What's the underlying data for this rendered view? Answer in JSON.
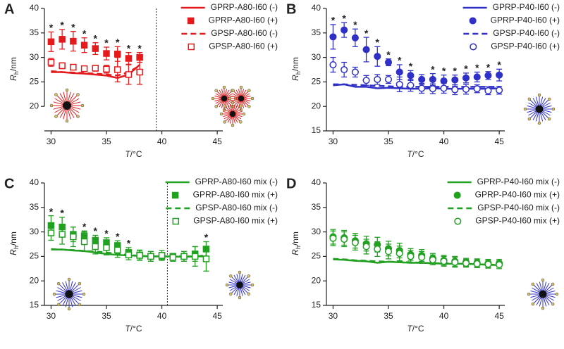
{
  "chart_data": [
    {
      "type": "line",
      "label": "A",
      "color": "#e41a1c",
      "xlabel": {
        "symbol": "T",
        "unit": "/°C"
      },
      "ylabel": {
        "symbol": "R",
        "subscript": "h",
        "unit": "/nm"
      },
      "xlim": [
        29.4,
        45.5
      ],
      "xticks": [
        30,
        35,
        40,
        45
      ],
      "ylim": [
        15,
        40
      ],
      "yticks": [
        20,
        25,
        30,
        35,
        40
      ],
      "vline": 39.5,
      "legend": "upper right",
      "x": [
        30,
        31,
        32,
        33,
        34,
        35,
        36,
        37,
        38
      ],
      "series": [
        {
          "name": "GPRP-A80-I60 (-)",
          "color": "#e41a1c",
          "style": "solid",
          "values": [
            27,
            27,
            26.8,
            26.7,
            26.5,
            26.3,
            25.8,
            26.5,
            28.5
          ]
        },
        {
          "name": "GPRP-A80-I60 (+)",
          "color": "#e41a1c",
          "marker": "square",
          "filled": true,
          "values": [
            33.2,
            33.7,
            33.3,
            32.5,
            31.8,
            30.8,
            30.7,
            29.8,
            30
          ],
          "errors": [
            2,
            2,
            2,
            1.5,
            1.2,
            1.3,
            1.5,
            1.2,
            1
          ]
        },
        {
          "name": "GPSP-A80-I60 (-)",
          "color": "#e41a1c",
          "style": "dashed",
          "values": [
            27.2,
            27,
            26.9,
            26.8,
            26.7,
            26.5,
            26.3,
            27,
            28.3
          ]
        },
        {
          "name": "GPSP-A80-I60 (+)",
          "color": "#e41a1c",
          "marker": "square",
          "filled": false,
          "values": [
            29,
            28.3,
            28,
            27.7,
            27.8,
            27.6,
            27.5,
            26.5,
            27
          ],
          "errors": [
            0.8,
            0.6,
            0.5,
            0.5,
            0.6,
            0.8,
            2.5,
            2,
            2.5
          ]
        }
      ],
      "annotations": [
        {
          "x": 30,
          "text": "*"
        },
        {
          "x": 31,
          "text": "*"
        },
        {
          "x": 32,
          "text": "*"
        },
        {
          "x": 33,
          "text": "*"
        },
        {
          "x": 34,
          "text": "*"
        },
        {
          "x": 35,
          "text": "*"
        },
        {
          "x": 36,
          "text": "*"
        },
        {
          "x": 37,
          "text": "*"
        },
        {
          "x": 38,
          "text": "*"
        }
      ]
    },
    {
      "type": "line",
      "label": "B",
      "color": "#3030c8",
      "xlabel": {
        "symbol": "T",
        "unit": "/°C"
      },
      "ylabel": {
        "symbol": "R",
        "subscript": "h",
        "unit": "/nm"
      },
      "xlim": [
        29.4,
        45.5
      ],
      "xticks": [
        30,
        35,
        40,
        45
      ],
      "ylim": [
        15,
        40
      ],
      "yticks": [
        15,
        20,
        25,
        30,
        35,
        40
      ],
      "legend": "upper right",
      "x": [
        30,
        31,
        32,
        33,
        34,
        35,
        36,
        37,
        38,
        39,
        40,
        41,
        42,
        43,
        44,
        45
      ],
      "series": [
        {
          "name": "GPRP-P40-I60 (-)",
          "color": "#3030c8",
          "style": "solid",
          "values": [
            24.3,
            24.5,
            24,
            24,
            23.7,
            23.8,
            23.7,
            23.6,
            23.6,
            23.7,
            23.6,
            23.6,
            23.6,
            23.6,
            23.6,
            23.7
          ]
        },
        {
          "name": "GPRP-P40-I60 (+)",
          "color": "#3030c8",
          "marker": "circle",
          "filled": true,
          "values": [
            34.2,
            35.6,
            34,
            31.6,
            30.2,
            29,
            27,
            26.3,
            25.5,
            25.5,
            25.2,
            25.4,
            25.8,
            26,
            26.3,
            26.4
          ],
          "errors": [
            2.5,
            1.5,
            1.8,
            2.5,
            2,
            0.7,
            1.5,
            1,
            1,
            1.2,
            1.2,
            1,
            1,
            1,
            0.8,
            1.2
          ]
        },
        {
          "name": "GPSP-P40-I60 (-)",
          "color": "#3030c8",
          "style": "dashed",
          "values": [
            24.5,
            24.5,
            24.4,
            24.3,
            24.2,
            24.1,
            24,
            24,
            24,
            24,
            24,
            24,
            24,
            24,
            24,
            24
          ]
        },
        {
          "name": "GPSP-P40-I60 (+)",
          "color": "#3030c8",
          "marker": "circle",
          "filled": false,
          "values": [
            28.5,
            27.5,
            27,
            25.3,
            25.5,
            25.5,
            24.5,
            24.3,
            23.7,
            23.6,
            23.7,
            23.4,
            23.5,
            23.6,
            23.2,
            23.3
          ],
          "errors": [
            1.5,
            1.5,
            1,
            1,
            1,
            0.8,
            1.5,
            1.2,
            1,
            1,
            1,
            1,
            1,
            0.8,
            0.8,
            0.8
          ]
        }
      ],
      "annotations": [
        {
          "x": 30,
          "text": "*"
        },
        {
          "x": 31,
          "text": "*"
        },
        {
          "x": 32,
          "text": "*"
        },
        {
          "x": 33,
          "text": "*"
        },
        {
          "x": 34,
          "text": "*"
        },
        {
          "x": 35,
          "text": "*"
        },
        {
          "x": 36,
          "text": "*"
        },
        {
          "x": 37,
          "text": "*"
        },
        {
          "x": 39,
          "text": "*"
        },
        {
          "x": 40,
          "text": "*"
        },
        {
          "x": 41,
          "text": "*"
        },
        {
          "x": 42,
          "text": "*"
        },
        {
          "x": 43,
          "text": "*"
        },
        {
          "x": 44,
          "text": "*"
        },
        {
          "x": 45,
          "text": "*"
        }
      ]
    },
    {
      "type": "line",
      "label": "C",
      "color": "#22a022",
      "xlabel": {
        "symbol": "T",
        "unit": "/°C"
      },
      "ylabel": {
        "symbol": "R",
        "subscript": "h",
        "unit": "/nm"
      },
      "xlim": [
        29.4,
        45.5
      ],
      "xticks": [
        30,
        35,
        40,
        45
      ],
      "ylim": [
        15,
        40
      ],
      "yticks": [
        15,
        20,
        25,
        30,
        35,
        40
      ],
      "vline": 40.5,
      "legend": "upper right",
      "x": [
        30,
        31,
        32,
        33,
        34,
        35,
        36,
        37,
        38,
        39,
        40,
        41,
        42,
        43,
        44
      ],
      "series": [
        {
          "name": "GPRP-A80-I60 mix (-)",
          "color": "#22a022",
          "style": "solid",
          "values": [
            26.4,
            26.4,
            26.2,
            26.1,
            25.8,
            25.5,
            25.3,
            25.2,
            25.1,
            25,
            25,
            25,
            24.9,
            25,
            25
          ]
        },
        {
          "name": "GPRP-A80-I60 mix (+)",
          "color": "#22a022",
          "marker": "square",
          "filled": true,
          "values": [
            31.3,
            31,
            29.5,
            29.2,
            28.3,
            27.8,
            27.2,
            25.8,
            25.3,
            25,
            25,
            25,
            25,
            25.5,
            26.5
          ],
          "errors": [
            2,
            2,
            1.5,
            1,
            1,
            1,
            1,
            1,
            1,
            1,
            0.8,
            0.5,
            1,
            1.5,
            1.5
          ]
        },
        {
          "name": "GPSP-A80-I60 mix (-)",
          "color": "#22a022",
          "style": "dashed",
          "values": [
            26.5,
            26.4,
            26.3,
            26.1,
            26,
            25.8,
            25.5,
            25.3,
            25.1,
            25,
            25,
            25,
            25,
            25,
            25.2
          ]
        },
        {
          "name": "GPSP-A80-I60 mix (+)",
          "color": "#22a022",
          "marker": "square",
          "filled": false,
          "values": [
            29.8,
            29.5,
            29,
            28,
            27,
            26.8,
            26.3,
            25.3,
            25.2,
            25,
            25.2,
            24.8,
            25,
            25,
            24.5
          ],
          "errors": [
            1.5,
            2,
            2,
            2,
            1.5,
            1.5,
            1.5,
            1,
            1,
            1,
            1,
            0.8,
            1,
            2,
            2.5
          ]
        }
      ],
      "annotations": [
        {
          "x": 30,
          "text": "*"
        },
        {
          "x": 31,
          "text": "*"
        },
        {
          "x": 33,
          "text": "*"
        },
        {
          "x": 34,
          "text": "*"
        },
        {
          "x": 35,
          "text": "*"
        },
        {
          "x": 36,
          "text": "*"
        },
        {
          "x": 37,
          "text": "*"
        },
        {
          "x": 44,
          "text": "*"
        }
      ]
    },
    {
      "type": "line",
      "label": "D",
      "color": "#22a022",
      "xlabel": {
        "symbol": "T",
        "unit": "/°C"
      },
      "ylabel": {
        "symbol": "R",
        "subscript": "h",
        "unit": "/nm"
      },
      "xlim": [
        29.4,
        45.5
      ],
      "xticks": [
        30,
        35,
        40,
        45
      ],
      "ylim": [
        15,
        40
      ],
      "yticks": [
        15,
        20,
        25,
        30,
        35,
        40
      ],
      "legend": "upper right",
      "x": [
        30,
        31,
        32,
        33,
        34,
        35,
        36,
        37,
        38,
        39,
        40,
        41,
        42,
        43,
        44,
        45
      ],
      "series": [
        {
          "name": "GPRP-P40-I60 mix (-)",
          "color": "#22a022",
          "style": "solid",
          "values": [
            24.4,
            24.3,
            24.1,
            24,
            23.7,
            23.9,
            23.8,
            23.7,
            23.7,
            23.6,
            23.5,
            23.5,
            23.5,
            23.4,
            23.3,
            23.2
          ]
        },
        {
          "name": "GPRP-P40-I60 mix (+)",
          "color": "#22a022",
          "marker": "circle",
          "filled": true,
          "values": [
            29,
            28.8,
            28.2,
            27.6,
            27.4,
            26.6,
            26.2,
            25.4,
            25.2,
            24.6,
            24.2,
            24,
            23.8,
            23.7,
            23.6,
            23.6
          ],
          "errors": [
            1.5,
            1.5,
            1.5,
            1.5,
            1.5,
            1.5,
            1.5,
            1.2,
            1.2,
            1,
            1,
            1,
            0.8,
            0.8,
            0.8,
            0.8
          ]
        },
        {
          "name": "GPSP-P40-I60 mix (-)",
          "color": "#22a022",
          "style": "dashed",
          "values": [
            24.5,
            24.4,
            24.2,
            24.1,
            24,
            23.9,
            23.9,
            23.8,
            23.7,
            23.6,
            23.6,
            23.5,
            23.5,
            23.4,
            23.3,
            23.3
          ]
        },
        {
          "name": "GPSP-P40-I60 mix (+)",
          "color": "#22a022",
          "marker": "circle",
          "filled": false,
          "values": [
            28.7,
            28.5,
            27.8,
            27,
            26.5,
            26,
            25.6,
            25,
            24.8,
            24.3,
            24,
            23.8,
            23.6,
            23.5,
            23.4,
            23.3
          ],
          "errors": [
            1.5,
            1.5,
            1.5,
            1.5,
            1.5,
            1.5,
            1.5,
            1.2,
            1.2,
            1,
            1,
            1,
            0.8,
            0.8,
            0.8,
            0.8
          ]
        }
      ],
      "annotations": []
    }
  ]
}
